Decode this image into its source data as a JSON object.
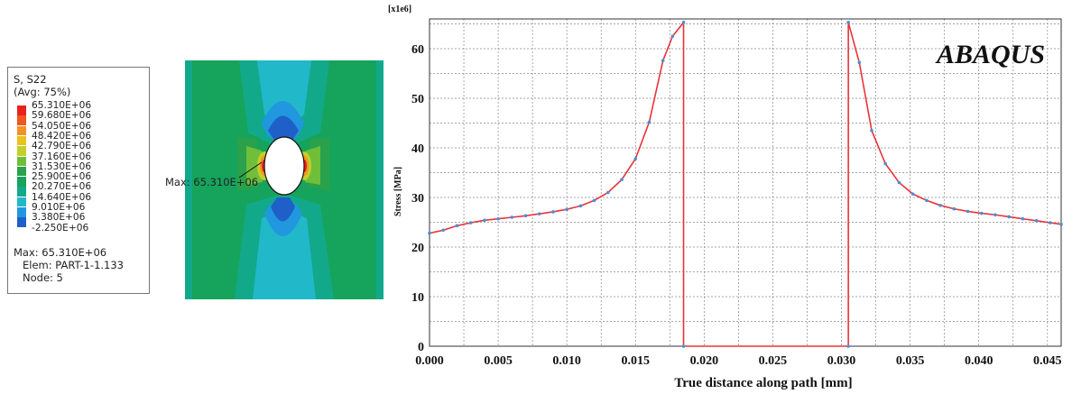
{
  "legend": {
    "title_line1": "S, S22",
    "title_line2": "(Avg: 75%)",
    "levels": [
      "65.310E+06",
      "59.680E+06",
      "54.050E+06",
      "48.420E+06",
      "42.790E+06",
      "37.160E+06",
      "31.530E+06",
      "25.900E+06",
      "20.270E+06",
      "14.640E+06",
      "9.010E+06",
      "3.380E+06",
      "-2.250E+06"
    ],
    "colors": [
      "#e8231c",
      "#f0561e",
      "#f39224",
      "#e9c21e",
      "#c4cf29",
      "#6fbf3a",
      "#2aa14a",
      "#16a35c",
      "#12a98b",
      "#21b8c9",
      "#2197e0",
      "#1f60c8",
      "#2432a8"
    ],
    "max_line": "Max:  65.310E+06",
    "elem_line": "Elem: PART-1-1.133",
    "node_line": "Node: 5"
  },
  "model": {
    "max_annotation": "Max:  65.310E+06"
  },
  "chart_data": {
    "type": "line",
    "title": "",
    "watermark": "ABAQUS",
    "scale_label": "[x1e6]",
    "xlabel": "True distance along path [mm]",
    "ylabel": "Stress [MPa]",
    "xlim": [
      0,
      0.046
    ],
    "ylim": [
      0,
      66
    ],
    "xticks": [
      "0.000",
      "0.005",
      "0.010",
      "0.015",
      "0.020",
      "0.025",
      "0.030",
      "0.035",
      "0.040",
      "0.045"
    ],
    "yticks": [
      "0",
      "10",
      "20",
      "30",
      "40",
      "50",
      "60"
    ],
    "grid": true,
    "line_color": "#e8333a",
    "marker_color": "#4a90d9",
    "series": [
      {
        "x": [
          0,
          0.001,
          0.002,
          0.003,
          0.004,
          0.005,
          0.006,
          0.007,
          0.008,
          0.009,
          0.01,
          0.011,
          0.012,
          0.013,
          0.014,
          0.015,
          0.016,
          0.017,
          0.0177,
          0.0185,
          0.0185,
          0.0305,
          0.0305,
          0.0313,
          0.0322,
          0.0332,
          0.0342,
          0.0352,
          0.0362,
          0.0372,
          0.0382,
          0.0392,
          0.0402,
          0.0412,
          0.0422,
          0.0432,
          0.0442,
          0.0452,
          0.046
        ],
        "y": [
          22.8,
          23.4,
          24.3,
          24.9,
          25.4,
          25.7,
          26.0,
          26.3,
          26.7,
          27.1,
          27.6,
          28.3,
          29.4,
          31.0,
          33.6,
          37.8,
          45.2,
          57.6,
          62.5,
          65.3,
          0,
          0,
          65.3,
          57.2,
          43.5,
          36.8,
          33.0,
          30.7,
          29.4,
          28.4,
          27.7,
          27.2,
          26.8,
          26.5,
          26.1,
          25.7,
          25.3,
          24.9,
          24.6
        ]
      }
    ]
  }
}
